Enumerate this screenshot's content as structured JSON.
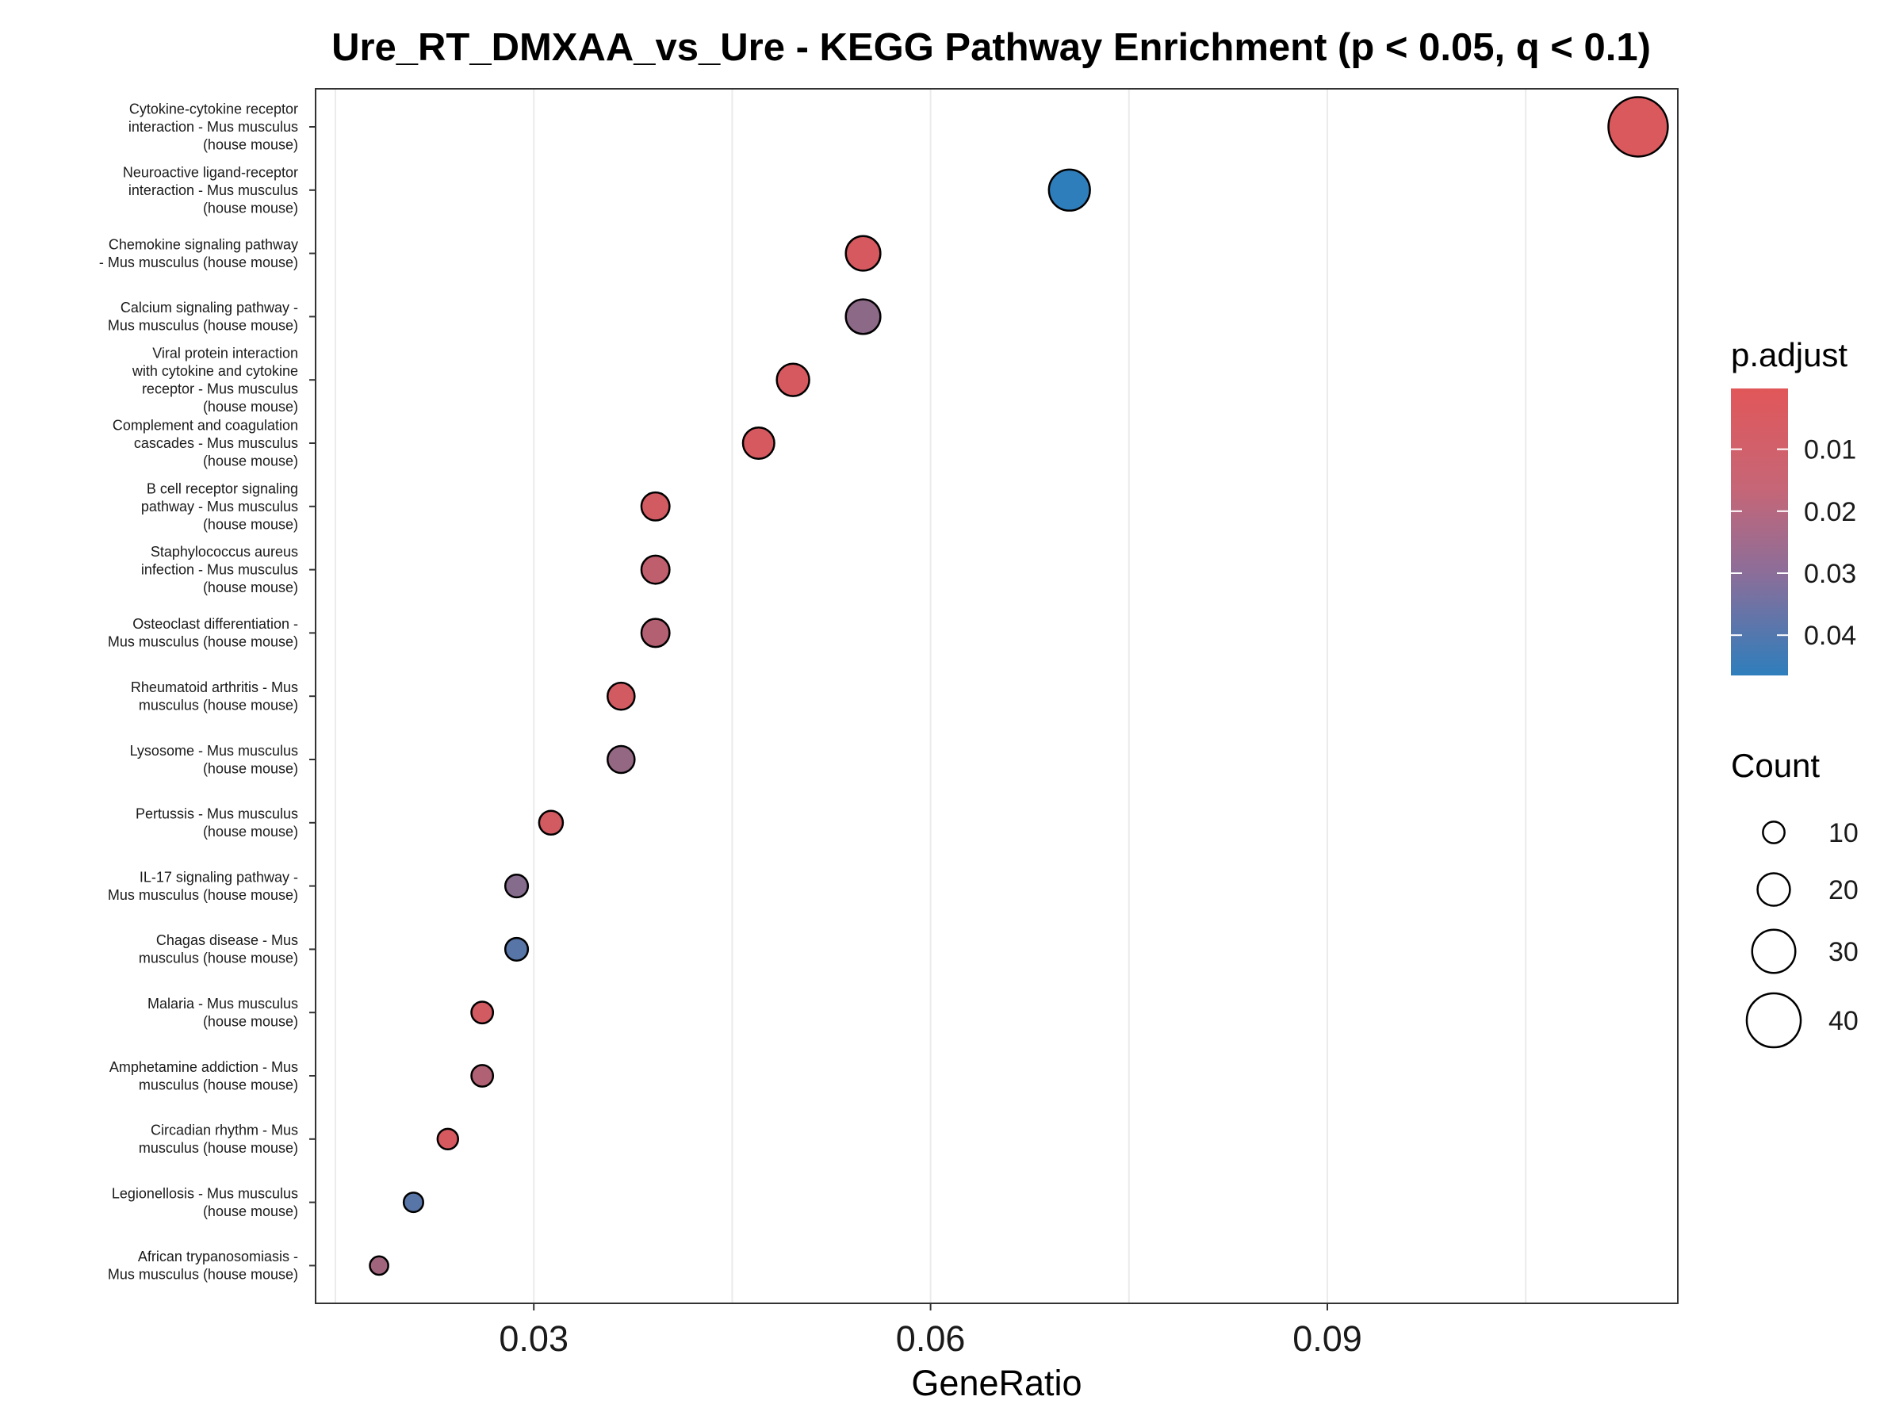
{
  "chart_data": {
    "type": "scatter",
    "title": "Ure_RT_DMXAA_vs_Ure - KEGG Pathway Enrichment (p < 0.05, q < 0.1)",
    "xlabel": "GeneRatio",
    "ylabel": "",
    "xlim": [
      0.0135,
      0.1165
    ],
    "xticks": [
      0.03,
      0.06,
      0.09
    ],
    "xtick_labels": [
      "0.03",
      "0.06",
      "0.09"
    ],
    "grid": true,
    "color_scale": {
      "name": "p.adjust",
      "low_color": "#e15759",
      "high_color": "#2e7ebc",
      "range": [
        0.0002,
        0.0465
      ],
      "ticks": [
        0.01,
        0.02,
        0.03,
        0.04
      ],
      "tick_labels": [
        "0.01",
        "0.02",
        "0.03",
        "0.04"
      ]
    },
    "size_scale": {
      "name": "Count",
      "ticks": [
        10,
        20,
        30,
        40
      ],
      "tick_labels": [
        "10",
        "20",
        "30",
        "40"
      ]
    },
    "legend_position": "right",
    "points": [
      {
        "label": "Cytokine-cytokine receptor\ninteraction - Mus musculus\n(house mouse)",
        "gene_ratio": 0.1135,
        "p_adjust": 0.002,
        "count": 45
      },
      {
        "label": "Neuroactive ligand-receptor\ninteraction - Mus musculus\n(house mouse)",
        "gene_ratio": 0.0705,
        "p_adjust": 0.0465,
        "count": 28
      },
      {
        "label": "Chemokine signaling pathway\n- Mus musculus (house mouse)",
        "gene_ratio": 0.0549,
        "p_adjust": 0.003,
        "count": 22
      },
      {
        "label": "Calcium signaling pathway -\nMus musculus (house mouse)",
        "gene_ratio": 0.0549,
        "p_adjust": 0.022,
        "count": 22
      },
      {
        "label": "Viral protein interaction\nwith cytokine and cytokine\nreceptor - Mus musculus\n(house mouse)",
        "gene_ratio": 0.0496,
        "p_adjust": 0.003,
        "count": 20
      },
      {
        "label": "Complement and coagulation\ncascades - Mus musculus\n(house mouse)",
        "gene_ratio": 0.047,
        "p_adjust": 0.003,
        "count": 19
      },
      {
        "label": "B cell receptor signaling\npathway - Mus musculus\n(house mouse)",
        "gene_ratio": 0.0392,
        "p_adjust": 0.004,
        "count": 16
      },
      {
        "label": "Staphylococcus aureus\ninfection - Mus musculus\n(house mouse)",
        "gene_ratio": 0.0392,
        "p_adjust": 0.009,
        "count": 16
      },
      {
        "label": "Osteoclast differentiation -\nMus musculus (house mouse)",
        "gene_ratio": 0.0392,
        "p_adjust": 0.012,
        "count": 16
      },
      {
        "label": "Rheumatoid arthritis - Mus\nmusculus (house mouse)",
        "gene_ratio": 0.0366,
        "p_adjust": 0.004,
        "count": 15
      },
      {
        "label": "Lysosome - Mus musculus\n(house mouse)",
        "gene_ratio": 0.0366,
        "p_adjust": 0.02,
        "count": 15
      },
      {
        "label": "Pertussis - Mus musculus\n(house mouse)",
        "gene_ratio": 0.0313,
        "p_adjust": 0.004,
        "count": 12
      },
      {
        "label": "IL-17 signaling pathway -\nMus musculus (house mouse)",
        "gene_ratio": 0.0287,
        "p_adjust": 0.024,
        "count": 11
      },
      {
        "label": "Chagas disease - Mus\nmusculus (house mouse)",
        "gene_ratio": 0.0287,
        "p_adjust": 0.036,
        "count": 11
      },
      {
        "label": "Malaria - Mus musculus\n(house mouse)",
        "gene_ratio": 0.0261,
        "p_adjust": 0.004,
        "count": 10
      },
      {
        "label": "Amphetamine addiction - Mus\nmusculus (house mouse)",
        "gene_ratio": 0.0261,
        "p_adjust": 0.013,
        "count": 10
      },
      {
        "label": "Circadian rhythm - Mus\nmusculus (house mouse)",
        "gene_ratio": 0.0235,
        "p_adjust": 0.003,
        "count": 9
      },
      {
        "label": "Legionellosis - Mus musculus\n(house mouse)",
        "gene_ratio": 0.0209,
        "p_adjust": 0.036,
        "count": 8
      },
      {
        "label": "African trypanosomiasis -\nMus musculus (house mouse)",
        "gene_ratio": 0.0183,
        "p_adjust": 0.017,
        "count": 7
      }
    ]
  }
}
